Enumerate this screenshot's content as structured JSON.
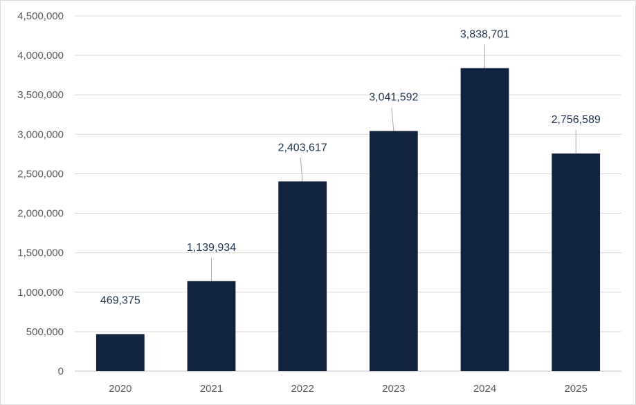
{
  "chart_data": {
    "type": "bar",
    "categories": [
      "2020",
      "2021",
      "2022",
      "2023",
      "2024",
      "2025"
    ],
    "values": [
      469375,
      1139934,
      2403617,
      3041592,
      3838701,
      2756589
    ],
    "data_labels": [
      "469,375",
      "1,139,934",
      "2,403,617",
      "3,041,592",
      "3,838,701",
      "2,756,589"
    ],
    "ylim": [
      0,
      4500000
    ],
    "yticks": [
      0,
      500000,
      1000000,
      1500000,
      2000000,
      2500000,
      3000000,
      3500000,
      4000000,
      4500000
    ],
    "ytick_labels": [
      "0",
      "500,000",
      "1,000,000",
      "1,500,000",
      "2,000,000",
      "2,500,000",
      "3,000,000",
      "3,500,000",
      "4,000,000",
      "4,500,000"
    ],
    "grid": true,
    "legend": "none",
    "bar_color": "#12233f"
  }
}
